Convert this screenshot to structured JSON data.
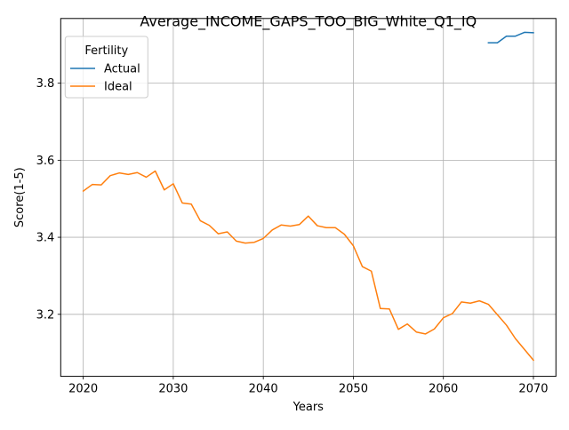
{
  "chart_data": {
    "type": "line",
    "title": "Average_INCOME_GAPS_TOO_BIG_White_Q1_IQ",
    "xlabel": "Years",
    "ylabel": "Score(1-5)",
    "xlim": [
      2017.5,
      2072.5
    ],
    "ylim": [
      3.039,
      3.968
    ],
    "x_ticks": [
      2020,
      2030,
      2040,
      2050,
      2060,
      2070
    ],
    "y_ticks": [
      3.2,
      3.4,
      3.6,
      3.8
    ],
    "grid": true,
    "legend": {
      "title": "Fertility",
      "placement": "top-left"
    },
    "series": [
      {
        "name": "Actual",
        "color": "#1f77b4",
        "x": [
          2065,
          2066,
          2067,
          2068,
          2069,
          2070
        ],
        "y": [
          3.905,
          3.905,
          3.922,
          3.922,
          3.932,
          3.931
        ]
      },
      {
        "name": "Ideal",
        "color": "#ff7f0e",
        "x": [
          2020,
          2021,
          2022,
          2023,
          2024,
          2025,
          2026,
          2027,
          2028,
          2029,
          2030,
          2031,
          2032,
          2033,
          2034,
          2035,
          2036,
          2037,
          2038,
          2039,
          2040,
          2041,
          2042,
          2043,
          2044,
          2045,
          2046,
          2047,
          2048,
          2049,
          2050,
          2051,
          2052,
          2053,
          2054,
          2055,
          2056,
          2057,
          2058,
          2059,
          2060,
          2061,
          2062,
          2063,
          2064,
          2065,
          2066,
          2067,
          2068,
          2069,
          2070
        ],
        "y": [
          3.52,
          3.537,
          3.536,
          3.56,
          3.567,
          3.563,
          3.568,
          3.556,
          3.572,
          3.523,
          3.539,
          3.489,
          3.486,
          3.443,
          3.431,
          3.409,
          3.414,
          3.39,
          3.385,
          3.387,
          3.397,
          3.419,
          3.432,
          3.429,
          3.433,
          3.455,
          3.43,
          3.425,
          3.425,
          3.408,
          3.378,
          3.324,
          3.312,
          3.215,
          3.214,
          3.161,
          3.175,
          3.154,
          3.149,
          3.162,
          3.191,
          3.202,
          3.232,
          3.229,
          3.235,
          3.226,
          3.199,
          3.172,
          3.137,
          3.109,
          3.081
        ]
      }
    ]
  }
}
